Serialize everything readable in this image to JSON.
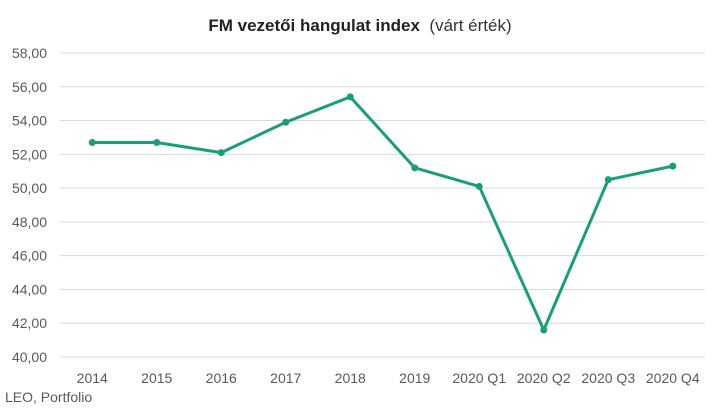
{
  "chart_data": {
    "type": "line",
    "title": "FM vezetői hangulat index",
    "subtitle": "(várt érték)",
    "categories": [
      "2014",
      "2015",
      "2016",
      "2017",
      "2018",
      "2019",
      "2020 Q1",
      "2020 Q2",
      "2020 Q3",
      "2020 Q4"
    ],
    "series": [
      {
        "values": [
          52.7,
          52.7,
          52.1,
          53.9,
          55.4,
          51.2,
          50.1,
          41.6,
          50.5,
          51.3
        ]
      }
    ],
    "ylim": [
      40,
      58
    ],
    "yticks": [
      40,
      42,
      44,
      46,
      48,
      50,
      52,
      54,
      56,
      58
    ],
    "y_tick_format": "comma-2-decimals",
    "grid": true,
    "line_color": "#1a9e78",
    "source": "LEO, Portfolio"
  }
}
